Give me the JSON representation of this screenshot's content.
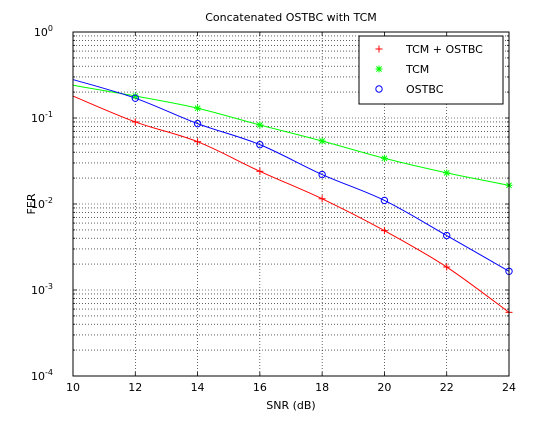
{
  "chart_data": {
    "type": "line",
    "title": "Concatenated OSTBC with TCM",
    "xlabel": "SNR (dB)",
    "ylabel": "FER",
    "xlim": [
      10,
      24
    ],
    "ylim": [
      0.0001,
      1
    ],
    "yscale": "log",
    "grid": true,
    "legend_position": "top-right",
    "x_ticks": [
      "10",
      "12",
      "14",
      "16",
      "18",
      "20",
      "22",
      "24"
    ],
    "y_ticks": [
      {
        "base": "10",
        "exp": "-4"
      },
      {
        "base": "10",
        "exp": "-3"
      },
      {
        "base": "10",
        "exp": "-2"
      },
      {
        "base": "10",
        "exp": "-1"
      },
      {
        "base": "10",
        "exp": "0"
      }
    ],
    "series": [
      {
        "name": "TCM + OSTBC",
        "color": "#ff0000",
        "marker": "plus",
        "x": [
          12,
          14,
          16,
          18,
          20,
          22,
          24
        ],
        "y": [
          0.09,
          0.053,
          0.024,
          0.0115,
          0.0049,
          0.00185,
          0.00055
        ],
        "curve_x": [
          10,
          24
        ],
        "curve_y_start": 0.18
      },
      {
        "name": "TCM",
        "color": "#00ff00",
        "marker": "star",
        "x": [
          12,
          14,
          16,
          18,
          20,
          22,
          24
        ],
        "y": [
          0.18,
          0.13,
          0.083,
          0.054,
          0.034,
          0.023,
          0.0165
        ],
        "curve_y_start": 0.24
      },
      {
        "name": "OSTBC",
        "color": "#0000ff",
        "marker": "circle",
        "x": [
          12,
          14,
          16,
          18,
          20,
          22,
          24
        ],
        "y": [
          0.17,
          0.086,
          0.049,
          0.022,
          0.011,
          0.0043,
          0.00165
        ],
        "curve_y_start": 0.28
      }
    ]
  }
}
